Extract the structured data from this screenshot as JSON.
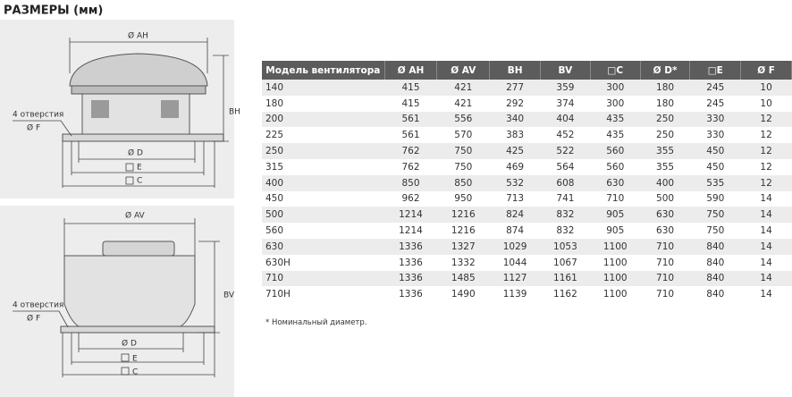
{
  "header": {
    "title": "РАЗМЕРЫ (мм)"
  },
  "drawing_top": {
    "diameter": "Ø AH",
    "height": "BH",
    "holes": "4 отверстия",
    "hole_diameter": "Ø F",
    "diameter_d": "Ø D",
    "square_e": "E",
    "square_c": "C"
  },
  "drawing_bottom": {
    "diameter": "Ø AV",
    "height": "BV",
    "holes": "4 отверстия",
    "hole_diameter": "Ø F",
    "diameter_d": "Ø D",
    "square_e": "E",
    "square_c": "C"
  },
  "table": {
    "columns": [
      "Модель вентилятора",
      "Ø AH",
      "Ø AV",
      "BH",
      "BV",
      "□C",
      "Ø D*",
      "□E",
      "Ø F"
    ],
    "rows": [
      [
        "140",
        415,
        421,
        277,
        359,
        300,
        180,
        245,
        10
      ],
      [
        "180",
        415,
        421,
        292,
        374,
        300,
        180,
        245,
        10
      ],
      [
        "200",
        561,
        556,
        340,
        404,
        435,
        250,
        330,
        12
      ],
      [
        "225",
        561,
        570,
        383,
        452,
        435,
        250,
        330,
        12
      ],
      [
        "250",
        762,
        750,
        425,
        522,
        560,
        355,
        450,
        12
      ],
      [
        "315",
        762,
        750,
        469,
        564,
        560,
        355,
        450,
        12
      ],
      [
        "400",
        850,
        850,
        532,
        608,
        630,
        400,
        535,
        12
      ],
      [
        "450",
        962,
        950,
        713,
        741,
        710,
        500,
        590,
        14
      ],
      [
        "500",
        1214,
        1216,
        824,
        832,
        905,
        630,
        750,
        14
      ],
      [
        "560",
        1214,
        1216,
        874,
        832,
        905,
        630,
        750,
        14
      ],
      [
        "630",
        1336,
        1327,
        1029,
        1053,
        1100,
        710,
        840,
        14
      ],
      [
        "630H",
        1336,
        1332,
        1044,
        1067,
        1100,
        710,
        840,
        14
      ],
      [
        "710",
        1336,
        1485,
        1127,
        1161,
        1100,
        710,
        840,
        14
      ],
      [
        "710H",
        1336,
        1490,
        1139,
        1162,
        1100,
        710,
        840,
        14
      ]
    ]
  },
  "footnote": "* Номинальный диаметр."
}
